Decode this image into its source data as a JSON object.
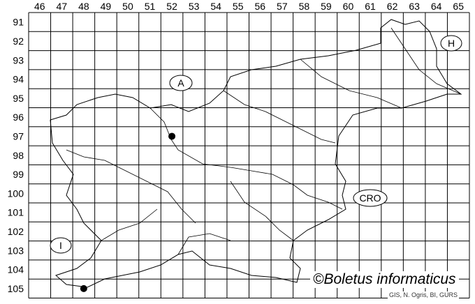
{
  "map": {
    "column_labels": [
      "46",
      "47",
      "48",
      "49",
      "50",
      "51",
      "52",
      "53",
      "54",
      "55",
      "56",
      "57",
      "58",
      "59",
      "60",
      "61",
      "62",
      "63",
      "64",
      "65"
    ],
    "row_labels": [
      "91",
      "92",
      "93",
      "94",
      "95",
      "96",
      "97",
      "98",
      "99",
      "100",
      "101",
      "102",
      "103",
      "104",
      "105"
    ],
    "country_labels": {
      "austria": "A",
      "hungary": "H",
      "croatia": "CRO",
      "italy": "I"
    },
    "records": [
      {
        "column": "52",
        "row": "97"
      },
      {
        "column": "48",
        "row": "105"
      }
    ],
    "credit": "©Boletus informaticus",
    "source": "GIS, N. Ogris, BI, GURS"
  }
}
